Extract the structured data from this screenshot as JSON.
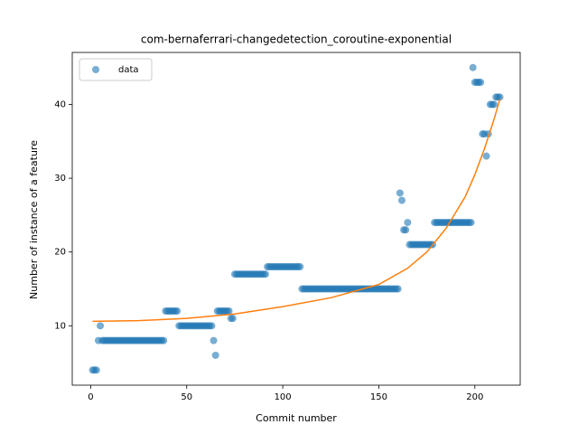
{
  "chart_data": {
    "type": "scatter",
    "title": "com-bernaferrari-changedetection_coroutine-exponential",
    "xlabel": "Commit number",
    "ylabel": "Number of instance of a feature",
    "xlim": [
      -9.6,
      223.6
    ],
    "ylim": [
      1.95,
      47.05
    ],
    "xticks": [
      0,
      50,
      100,
      150,
      200
    ],
    "yticks": [
      10,
      20,
      30,
      40
    ],
    "legend": "upper left",
    "series": [
      {
        "name": "data",
        "type": "scatter",
        "color": "#1f77b4",
        "x": [
          1,
          2,
          3,
          4,
          5,
          6,
          7,
          8,
          9,
          10,
          11,
          12,
          13,
          14,
          15,
          16,
          17,
          18,
          19,
          20,
          21,
          22,
          23,
          24,
          25,
          26,
          27,
          28,
          29,
          30,
          31,
          32,
          33,
          34,
          35,
          36,
          37,
          38,
          39,
          40,
          41,
          42,
          43,
          44,
          45,
          46,
          47,
          48,
          49,
          50,
          51,
          52,
          53,
          54,
          55,
          56,
          57,
          58,
          59,
          60,
          61,
          62,
          63,
          64,
          65,
          66,
          67,
          68,
          69,
          70,
          71,
          72,
          73,
          74,
          75,
          76,
          77,
          78,
          79,
          80,
          81,
          82,
          83,
          84,
          85,
          86,
          87,
          88,
          89,
          90,
          91,
          92,
          93,
          94,
          95,
          96,
          97,
          98,
          99,
          100,
          101,
          102,
          103,
          104,
          105,
          106,
          107,
          108,
          109,
          110,
          111,
          112,
          113,
          114,
          115,
          116,
          117,
          118,
          119,
          120,
          121,
          122,
          123,
          124,
          125,
          126,
          127,
          128,
          129,
          130,
          131,
          132,
          133,
          134,
          135,
          136,
          137,
          138,
          139,
          140,
          141,
          142,
          143,
          144,
          145,
          146,
          147,
          148,
          149,
          150,
          151,
          152,
          153,
          154,
          155,
          156,
          157,
          158,
          159,
          160,
          161,
          162,
          163,
          164,
          165,
          166,
          167,
          168,
          169,
          170,
          171,
          172,
          173,
          174,
          175,
          176,
          177,
          178,
          179,
          180,
          181,
          182,
          183,
          184,
          185,
          186,
          187,
          188,
          189,
          190,
          191,
          192,
          193,
          194,
          195,
          196,
          197,
          198,
          199,
          200,
          201,
          202,
          203,
          204,
          205,
          206,
          207,
          208,
          209,
          210,
          211,
          212,
          213
        ],
        "values": [
          4,
          4,
          4,
          8,
          10,
          8,
          8,
          8,
          8,
          8,
          8,
          8,
          8,
          8,
          8,
          8,
          8,
          8,
          8,
          8,
          8,
          8,
          8,
          8,
          8,
          8,
          8,
          8,
          8,
          8,
          8,
          8,
          8,
          8,
          8,
          8,
          8,
          8,
          12,
          12,
          12,
          12,
          12,
          12,
          12,
          10,
          10,
          10,
          10,
          10,
          10,
          10,
          10,
          10,
          10,
          10,
          10,
          10,
          10,
          10,
          10,
          10,
          10,
          8,
          6,
          12,
          12,
          12,
          12,
          12,
          12,
          12,
          11,
          11,
          17,
          17,
          17,
          17,
          17,
          17,
          17,
          17,
          17,
          17,
          17,
          17,
          17,
          17,
          17,
          17,
          17,
          18,
          18,
          18,
          18,
          18,
          18,
          18,
          18,
          18,
          18,
          18,
          18,
          18,
          18,
          18,
          18,
          18,
          18,
          15,
          15,
          15,
          15,
          15,
          15,
          15,
          15,
          15,
          15,
          15,
          15,
          15,
          15,
          15,
          15,
          15,
          15,
          15,
          15,
          15,
          15,
          15,
          15,
          15,
          15,
          15,
          15,
          15,
          15,
          15,
          15,
          15,
          15,
          15,
          15,
          15,
          15,
          15,
          15,
          15,
          15,
          15,
          15,
          15,
          15,
          15,
          15,
          15,
          15,
          15,
          28,
          27,
          23,
          23,
          24,
          21,
          21,
          21,
          21,
          21,
          21,
          21,
          21,
          21,
          21,
          21,
          21,
          21,
          24,
          24,
          24,
          24,
          24,
          24,
          24,
          24,
          24,
          24,
          24,
          24,
          24,
          24,
          24,
          24,
          24,
          24,
          24,
          24,
          45,
          43,
          43,
          43,
          43,
          36,
          36,
          33,
          36,
          40,
          40,
          40,
          41,
          41,
          41
        ]
      },
      {
        "type": "line",
        "color": "#ff7f0e",
        "x": [
          1,
          25,
          50,
          75,
          100,
          125,
          150,
          165,
          175,
          185,
          195,
          200,
          205,
          210,
          213
        ],
        "values": [
          10.6,
          10.7,
          11.0,
          11.6,
          12.6,
          13.8,
          15.6,
          17.8,
          20.0,
          23.2,
          27.5,
          30.5,
          34,
          38,
          40.7
        ]
      }
    ]
  }
}
